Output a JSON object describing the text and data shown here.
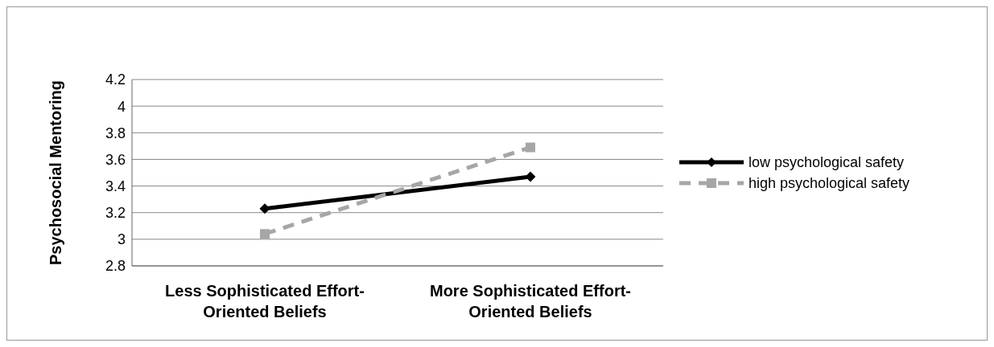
{
  "chart_data": {
    "type": "line",
    "ylabel": "Psychosocial Mentoring",
    "categories": [
      "Less Sophisticated Effort-Oriented Beliefs",
      "More Sophisticated Effort-Oriented Beliefs"
    ],
    "series": [
      {
        "name": "low psychological safety",
        "color": "#000000",
        "values": [
          3.23,
          3.47
        ],
        "marker": "diamond",
        "line_style": "solid"
      },
      {
        "name": "high psychological safety",
        "color": "#a6a6a6",
        "values": [
          3.04,
          3.69
        ],
        "marker": "square",
        "line_style": "dashed"
      }
    ],
    "ylim": [
      2.8,
      4.2
    ],
    "yticks": [
      2.8,
      3,
      3.2,
      3.4,
      3.6,
      3.8,
      4,
      4.2
    ],
    "grid": "y",
    "legend": "right"
  }
}
